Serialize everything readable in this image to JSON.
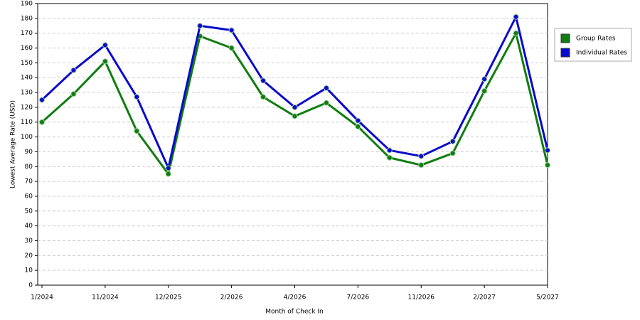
{
  "chart_data": {
    "type": "line",
    "x_label": "Month of Check In",
    "y_label": "Lowest Average Rate (USD)",
    "categories": [
      "1/2024",
      null,
      "11/2024",
      null,
      "12/2025",
      null,
      "2/2026",
      null,
      "4/2026",
      null,
      "7/2026",
      null,
      "11/2026",
      null,
      "2/2027",
      null,
      "5/2027"
    ],
    "series": [
      {
        "name": "Group Rates",
        "color": "#0f7d0f",
        "values": [
          110,
          129,
          151,
          104,
          75,
          168,
          160,
          127,
          114,
          123,
          107,
          86,
          81,
          89,
          131,
          170,
          81
        ]
      },
      {
        "name": "Individual Rates",
        "color": "#0a0acc",
        "values": [
          125,
          145,
          162,
          127,
          79,
          175,
          172,
          138,
          120,
          133,
          111,
          91,
          87,
          97,
          139,
          181,
          91
        ]
      }
    ],
    "ylim": [
      0,
      190
    ],
    "yticks": [
      0,
      10,
      20,
      30,
      40,
      50,
      60,
      70,
      80,
      90,
      100,
      110,
      120,
      130,
      140,
      150,
      160,
      170,
      180,
      190
    ],
    "grid": true,
    "legend": "right"
  }
}
